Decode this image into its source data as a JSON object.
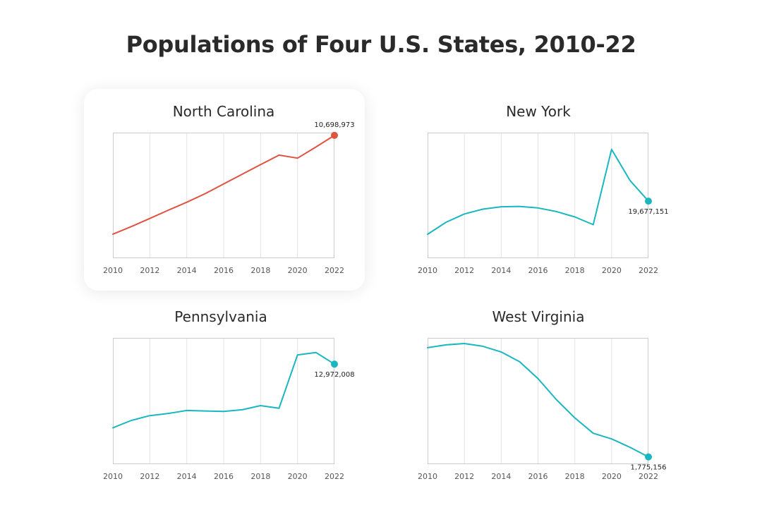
{
  "title": "Populations of Four U.S. States, 2010-22",
  "colors": {
    "highlight": "#e0533f",
    "series": "#1ab7c1",
    "grid": "#e3e3e3",
    "frame": "#cccccc"
  },
  "chart_data": [
    {
      "type": "line",
      "title": "North Carolina",
      "highlighted": true,
      "color": "#e0533f",
      "x": [
        2010,
        2011,
        2012,
        2013,
        2014,
        2015,
        2016,
        2017,
        2018,
        2019,
        2020,
        2021,
        2022
      ],
      "y": [
        9574000,
        9660000,
        9752000,
        9846000,
        9937000,
        10035000,
        10146000,
        10256000,
        10365000,
        10474000,
        10439000,
        10566000,
        10698973
      ],
      "xticks": [
        2010,
        2012,
        2014,
        2016,
        2018,
        2020,
        2022
      ],
      "xlim": [
        2010,
        2022
      ],
      "ylim": [
        9300000,
        10730000
      ],
      "end_label": "10,698,973",
      "xlabel": "",
      "ylabel": "",
      "grid": true
    },
    {
      "type": "line",
      "title": "New York",
      "highlighted": false,
      "color": "#1ab7c1",
      "x": [
        2010,
        2011,
        2012,
        2013,
        2014,
        2015,
        2016,
        2017,
        2018,
        2019,
        2020,
        2021,
        2022
      ],
      "y": [
        19400000,
        19500000,
        19570000,
        19610000,
        19630000,
        19633000,
        19620000,
        19590000,
        19545000,
        19480000,
        20110000,
        19850000,
        19677151
      ],
      "xticks": [
        2010,
        2012,
        2014,
        2016,
        2018,
        2020,
        2022
      ],
      "xlim": [
        2010,
        2022
      ],
      "ylim": [
        19200000,
        20250000
      ],
      "end_label": "19,677,151",
      "xlabel": "",
      "ylabel": "",
      "grid": true
    },
    {
      "type": "line",
      "title": "Pennsylvania",
      "highlighted": false,
      "color": "#1ab7c1",
      "x": [
        2010,
        2011,
        2012,
        2013,
        2014,
        2015,
        2016,
        2017,
        2018,
        2019,
        2020,
        2021,
        2022
      ],
      "y": [
        12710000,
        12740000,
        12760000,
        12769000,
        12781000,
        12779000,
        12777000,
        12784000,
        12801000,
        12790000,
        13010000,
        13020000,
        12972008
      ],
      "xticks": [
        2010,
        2012,
        2014,
        2016,
        2018,
        2020,
        2022
      ],
      "xlim": [
        2010,
        2022
      ],
      "ylim": [
        12560000,
        13080000
      ],
      "end_label": "12,972,008",
      "xlabel": "",
      "ylabel": "",
      "grid": true
    },
    {
      "type": "line",
      "title": "West Virginia",
      "highlighted": false,
      "color": "#1ab7c1",
      "x": [
        2010,
        2011,
        2012,
        2013,
        2014,
        2015,
        2016,
        2017,
        2018,
        2019,
        2020,
        2021,
        2022
      ],
      "y": [
        1853000,
        1855000,
        1856000,
        1854000,
        1850000,
        1843000,
        1831000,
        1816000,
        1803000,
        1792000,
        1788000,
        1782000,
        1775156
      ],
      "xticks": [
        2010,
        2012,
        2014,
        2016,
        2018,
        2020,
        2022
      ],
      "xlim": [
        2010,
        2022
      ],
      "ylim": [
        1770000,
        1860000
      ],
      "end_label": "1,775,156",
      "xlabel": "",
      "ylabel": "",
      "grid": true
    }
  ]
}
